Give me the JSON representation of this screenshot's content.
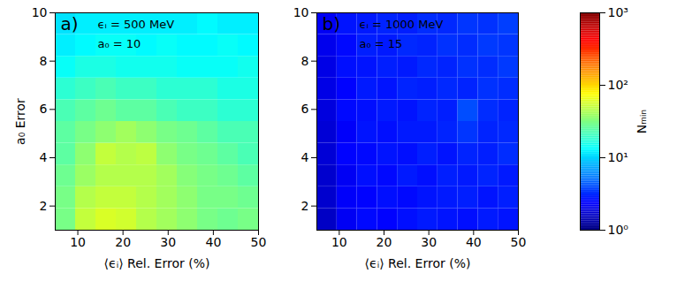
{
  "chart_data": [
    {
      "type": "heatmap",
      "annotations": [
        "a)",
        "ϵᵢ = 500 MeV",
        "a₀ = 10"
      ],
      "xlabel": "⟨ϵᵢ⟩ Rel. Error (%)",
      "ylabel": "a₀ Error",
      "x": [
        7.25,
        11.75,
        16.25,
        20.75,
        25.25,
        29.75,
        34.25,
        38.75,
        43.25,
        47.75
      ],
      "y": [
        1.45,
        2.35,
        3.25,
        4.15,
        5.05,
        5.95,
        6.85,
        7.75,
        8.65,
        9.55
      ],
      "values": [
        [
          30,
          50,
          58,
          55,
          45,
          40,
          35,
          30,
          28,
          30
        ],
        [
          30,
          45,
          50,
          50,
          45,
          40,
          35,
          30,
          30,
          28
        ],
        [
          28,
          38,
          45,
          45,
          45,
          40,
          33,
          30,
          28,
          25
        ],
        [
          25,
          35,
          50,
          45,
          48,
          35,
          30,
          28,
          25,
          22
        ],
        [
          25,
          30,
          35,
          40,
          35,
          30,
          28,
          25,
          22,
          22
        ],
        [
          22,
          25,
          28,
          25,
          25,
          22,
          20,
          20,
          18,
          18
        ],
        [
          18,
          20,
          22,
          20,
          20,
          18,
          18,
          18,
          16,
          16
        ],
        [
          14,
          16,
          16,
          15,
          15,
          15,
          14,
          14,
          14,
          15
        ],
        [
          12,
          13,
          14,
          14,
          13,
          14,
          13,
          13,
          14,
          13
        ],
        [
          11,
          12,
          12,
          12,
          12,
          12,
          12,
          13,
          12,
          12
        ]
      ],
      "xlim": [
        5,
        50
      ],
      "ylim": [
        1,
        10
      ],
      "xticks": [
        10,
        20,
        30,
        40,
        50
      ],
      "yticks": [
        2,
        4,
        6,
        8,
        10
      ]
    },
    {
      "type": "heatmap",
      "annotations": [
        "b)",
        "ϵᵢ = 1000 MeV",
        "a₀ = 15"
      ],
      "xlabel": "⟨ϵᵢ⟩ Rel. Error (%)",
      "x": [
        7.25,
        11.75,
        16.25,
        20.75,
        25.25,
        29.75,
        34.25,
        38.75,
        43.25,
        47.75
      ],
      "y": [
        1.45,
        2.35,
        3.25,
        4.15,
        5.05,
        5.95,
        6.85,
        7.75,
        8.65,
        9.55
      ],
      "values": [
        [
          1.6,
          2.2,
          2.5,
          2.4,
          2.6,
          2.8,
          2.7,
          2.6,
          2.8,
          2.7
        ],
        [
          1.7,
          2.3,
          2.4,
          2.6,
          2.5,
          2.7,
          2.8,
          2.9,
          2.7,
          2.9
        ],
        [
          1.7,
          2.2,
          2.6,
          2.5,
          2.8,
          2.6,
          2.9,
          2.8,
          3.0,
          2.8
        ],
        [
          1.8,
          2.4,
          2.5,
          2.7,
          2.6,
          2.9,
          2.7,
          3.0,
          2.9,
          3.2
        ],
        [
          1.8,
          2.3,
          2.7,
          2.6,
          2.8,
          2.8,
          3.0,
          3.4,
          3.0,
          3.1
        ],
        [
          1.9,
          2.5,
          2.6,
          2.8,
          2.7,
          3.0,
          2.9,
          4.0,
          3.2,
          3.0
        ],
        [
          2.0,
          2.4,
          2.8,
          2.7,
          3.0,
          2.9,
          3.1,
          3.0,
          3.3,
          3.2
        ],
        [
          2.0,
          2.6,
          2.7,
          2.9,
          2.8,
          3.1,
          3.0,
          3.3,
          3.2,
          3.5
        ],
        [
          2.1,
          2.5,
          2.9,
          2.8,
          3.1,
          3.0,
          3.3,
          3.2,
          3.5,
          3.4
        ],
        [
          2.2,
          2.7,
          2.8,
          3.0,
          2.9,
          3.2,
          3.1,
          3.4,
          3.3,
          3.6
        ]
      ],
      "xlim": [
        5,
        50
      ],
      "ylim": [
        1,
        10
      ],
      "xticks": [
        10,
        20,
        30,
        40,
        50
      ],
      "yticks": [
        2,
        4,
        6,
        8,
        10
      ],
      "colorbar": {
        "label": "Nₘᵢₙ",
        "log": true,
        "range": [
          1,
          1000
        ],
        "ticks": [
          {
            "value": 1,
            "label": "10⁰"
          },
          {
            "value": 10,
            "label": "10¹"
          },
          {
            "value": 100,
            "label": "10²"
          },
          {
            "value": 1000,
            "label": "10³"
          }
        ]
      }
    }
  ]
}
